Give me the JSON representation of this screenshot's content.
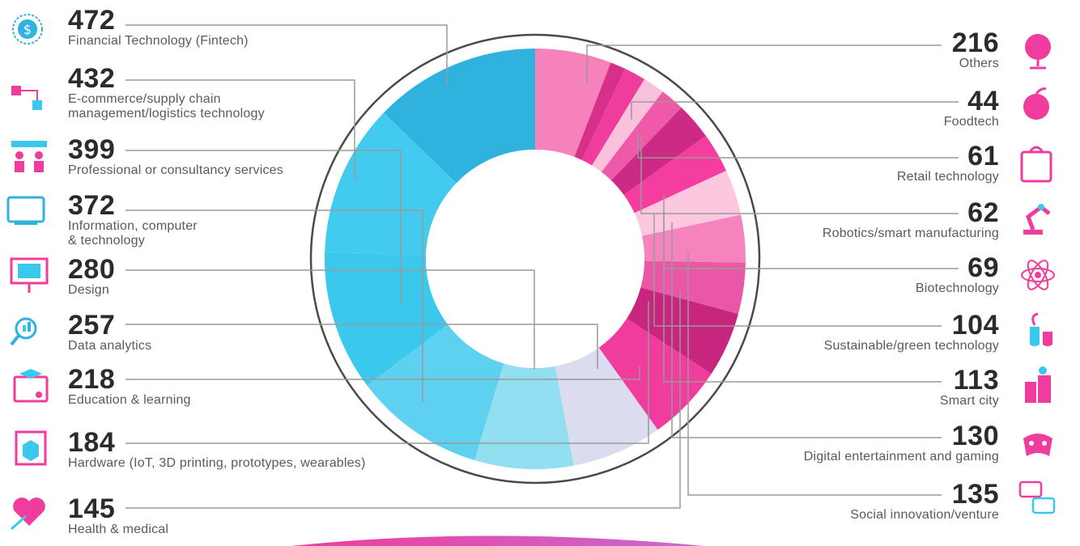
{
  "chart_data": {
    "type": "pie",
    "variant": "donut",
    "title": "",
    "segments": [
      {
        "name": "Others",
        "value": 216,
        "color": "#f582bb"
      },
      {
        "name": "Foodtech",
        "value": 44,
        "color": "#d82f8b"
      },
      {
        "name": "Retail technology",
        "value": 61,
        "color": "#f03c9c"
      },
      {
        "name": "Robotics/smart manufacturing",
        "value": 62,
        "color": "#f9c1dc"
      },
      {
        "name": "Biotechnology",
        "value": 69,
        "color": "#ee5aa7"
      },
      {
        "name": "Sustainable/green technology",
        "value": 104,
        "color": "#cc2a84"
      },
      {
        "name": "Smart city",
        "value": 113,
        "color": "#f43d9f"
      },
      {
        "name": "Digital entertainment and gaming",
        "value": 130,
        "color": "#fcc7df"
      },
      {
        "name": "Social innovation/venture",
        "value": 135,
        "color": "#f584be"
      },
      {
        "name": "Health & medical",
        "value": 145,
        "color": "#ea57a6"
      },
      {
        "name": "Hardware (IoT, 3D printing, prototypes, wearables)",
        "value": 184,
        "color": "#c8257f"
      },
      {
        "name": "Education & learning",
        "value": 218,
        "color": "#f03c9c"
      },
      {
        "name": "Data analytics",
        "value": 257,
        "color": "#dcdcf0"
      },
      {
        "name": "Design",
        "value": 280,
        "color": "#93dff2"
      },
      {
        "name": "Information, computer & technology",
        "value": 372,
        "color": "#5fd1f0"
      },
      {
        "name": "Professional or consultancy services",
        "value": 399,
        "color": "#3ac8ec"
      },
      {
        "name": "E-commerce/supply chain management/logistics technology",
        "value": 432,
        "color": "#43cbef"
      },
      {
        "name": "Financial Technology (Fintech)",
        "value": 472,
        "color": "#2fb2dd"
      }
    ]
  },
  "left_labels": [
    {
      "value": "472",
      "lines": [
        "Financial Technology (Fintech)"
      ],
      "icon": "fintech-icon"
    },
    {
      "value": "432",
      "lines": [
        "E-commerce/supply chain",
        "management/logistics technology"
      ],
      "icon": "ecommerce-icon"
    },
    {
      "value": "399",
      "lines": [
        "Professional or consultancy services"
      ],
      "icon": "consultancy-icon"
    },
    {
      "value": "372",
      "lines": [
        "Information, computer",
        "& technology"
      ],
      "icon": "computer-icon"
    },
    {
      "value": "280",
      "lines": [
        "Design"
      ],
      "icon": "design-icon"
    },
    {
      "value": "257",
      "lines": [
        "Data analytics"
      ],
      "icon": "data-analytics-icon"
    },
    {
      "value": "218",
      "lines": [
        "Education & learning"
      ],
      "icon": "education-icon"
    },
    {
      "value": "184",
      "lines": [
        "Hardware (IoT, 3D printing, prototypes, wearables)"
      ],
      "icon": "hardware-icon"
    },
    {
      "value": "145",
      "lines": [
        "Health & medical"
      ],
      "icon": "health-icon"
    }
  ],
  "right_labels": [
    {
      "value": "216",
      "lines": [
        "Others"
      ],
      "icon": "globe-icon"
    },
    {
      "value": "44",
      "lines": [
        "Foodtech"
      ],
      "icon": "foodtech-icon"
    },
    {
      "value": "61",
      "lines": [
        "Retail technology"
      ],
      "icon": "retail-icon"
    },
    {
      "value": "62",
      "lines": [
        "Robotics/smart manufacturing"
      ],
      "icon": "robot-arm-icon"
    },
    {
      "value": "69",
      "lines": [
        "Biotechnology"
      ],
      "icon": "atom-icon"
    },
    {
      "value": "104",
      "lines": [
        "Sustainable/green technology"
      ],
      "icon": "green-tech-icon"
    },
    {
      "value": "113",
      "lines": [
        "Smart city"
      ],
      "icon": "smart-city-icon"
    },
    {
      "value": "130",
      "lines": [
        "Digital entertainment and gaming"
      ],
      "icon": "gaming-icon"
    },
    {
      "value": "135",
      "lines": [
        "Social innovation/venture"
      ],
      "icon": "chat-icon"
    }
  ],
  "colors": {
    "cyan": "#2fb2dd",
    "pink": "#f03c9c",
    "text_dark": "#2b2b2b",
    "text_gray": "#5a5a5a",
    "leader": "#9a9a9a"
  }
}
